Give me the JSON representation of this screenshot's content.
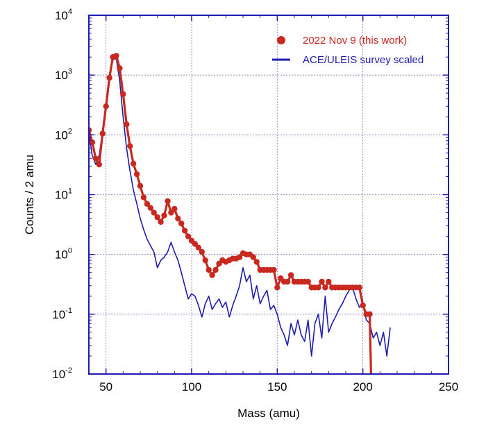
{
  "chart_data": {
    "type": "line",
    "title": "",
    "xlabel": "Mass (amu)",
    "ylabel": "Counts / 2 amu",
    "xlim": [
      40,
      250
    ],
    "ylim": [
      0.01,
      10000
    ],
    "yscale": "log",
    "grid": true,
    "x_ticks": [
      {
        "value": 50,
        "label": "50"
      },
      {
        "value": 100,
        "label": "100"
      },
      {
        "value": 150,
        "label": "150"
      },
      {
        "value": 200,
        "label": "200"
      },
      {
        "value": 250,
        "label": "250"
      }
    ],
    "y_ticks": [
      {
        "value": 0.01,
        "base": "10",
        "exp": "-2"
      },
      {
        "value": 0.1,
        "base": "10",
        "exp": "-1"
      },
      {
        "value": 1,
        "base": "10",
        "exp": "0"
      },
      {
        "value": 10,
        "base": "10",
        "exp": "1"
      },
      {
        "value": 100,
        "base": "10",
        "exp": "2"
      },
      {
        "value": 1000,
        "base": "10",
        "exp": "3"
      },
      {
        "value": 10000,
        "base": "10",
        "exp": "4"
      }
    ],
    "legend_position": "top-right",
    "series": [
      {
        "name": "2022 Nov 9 (this work)",
        "style": "line-markers",
        "color": "#c8281e",
        "x": [
          40,
          42,
          44,
          46,
          48,
          50,
          52,
          54,
          56,
          58,
          60,
          62,
          64,
          66,
          68,
          70,
          72,
          74,
          76,
          78,
          80,
          82,
          84,
          86,
          88,
          90,
          92,
          94,
          96,
          98,
          100,
          102,
          104,
          106,
          108,
          110,
          112,
          114,
          116,
          118,
          120,
          122,
          124,
          126,
          128,
          130,
          132,
          134,
          136,
          138,
          140,
          142,
          144,
          146,
          148,
          150,
          152,
          154,
          156,
          158,
          160,
          162,
          164,
          166,
          168,
          170,
          172,
          174,
          176,
          178,
          180,
          182,
          184,
          186,
          188,
          190,
          192,
          194,
          196,
          198,
          200,
          202,
          204,
          205
        ],
        "y": [
          120,
          75,
          40,
          32,
          105,
          300,
          900,
          2000,
          2100,
          1300,
          480,
          150,
          65,
          33,
          22,
          14,
          9,
          7,
          6,
          5,
          4.2,
          3.5,
          4.5,
          7.8,
          5,
          5.8,
          4,
          3.3,
          2.5,
          2,
          1.7,
          1.5,
          1.3,
          1.1,
          0.8,
          0.55,
          0.45,
          0.55,
          0.7,
          0.8,
          0.75,
          0.8,
          0.85,
          0.85,
          0.9,
          1.05,
          1,
          1,
          0.9,
          0.75,
          0.55,
          0.55,
          0.55,
          0.55,
          0.55,
          0.28,
          0.4,
          0.35,
          0.35,
          0.45,
          0.35,
          0.35,
          0.35,
          0.35,
          0.35,
          0.28,
          0.28,
          0.28,
          0.35,
          0.28,
          0.35,
          0.28,
          0.28,
          0.28,
          0.28,
          0.28,
          0.28,
          0.28,
          0.28,
          0.28,
          0.14,
          0.1,
          0.1,
          0.005
        ]
      },
      {
        "name": "ACE/ULEIS survey scaled",
        "style": "line",
        "color": "#1c1cb0",
        "x": [
          40,
          42,
          44,
          46,
          48,
          50,
          52,
          54,
          56,
          58,
          60,
          62,
          64,
          66,
          68,
          70,
          72,
          74,
          76,
          78,
          80,
          82,
          84,
          86,
          88,
          90,
          92,
          94,
          96,
          98,
          100,
          102,
          104,
          106,
          108,
          110,
          112,
          114,
          116,
          118,
          120,
          122,
          124,
          126,
          128,
          130,
          132,
          134,
          136,
          138,
          140,
          142,
          144,
          146,
          148,
          150,
          152,
          154,
          156,
          158,
          160,
          162,
          164,
          166,
          168,
          170,
          172,
          174,
          176,
          178,
          180,
          182,
          184,
          186,
          188,
          190,
          192,
          194,
          196,
          198,
          200,
          202,
          204,
          206,
          208,
          210,
          212,
          214,
          216
        ],
        "y": [
          110,
          45,
          32,
          45,
          110,
          320,
          950,
          1800,
          1900,
          800,
          200,
          60,
          25,
          12,
          7,
          4,
          2.6,
          1.8,
          1.4,
          1.1,
          0.6,
          0.8,
          0.9,
          1.1,
          1.6,
          1.1,
          0.8,
          0.5,
          0.3,
          0.18,
          0.22,
          0.2,
          0.14,
          0.09,
          0.15,
          0.2,
          0.12,
          0.15,
          0.18,
          0.13,
          0.16,
          0.09,
          0.14,
          0.2,
          0.3,
          0.6,
          0.35,
          0.45,
          0.18,
          0.3,
          0.15,
          0.2,
          0.25,
          0.12,
          0.14,
          0.1,
          0.06,
          0.045,
          0.03,
          0.07,
          0.045,
          0.08,
          0.045,
          0.035,
          0.08,
          0.02,
          0.07,
          0.1,
          0.04,
          0.2,
          0.05,
          0.07,
          0.09,
          0.12,
          0.15,
          0.2,
          0.25,
          0.28,
          0.18,
          0.13,
          0.15,
          0.08,
          0.07,
          0.04,
          0.05,
          0.03,
          0.05,
          0.02,
          0.06
        ]
      }
    ]
  }
}
